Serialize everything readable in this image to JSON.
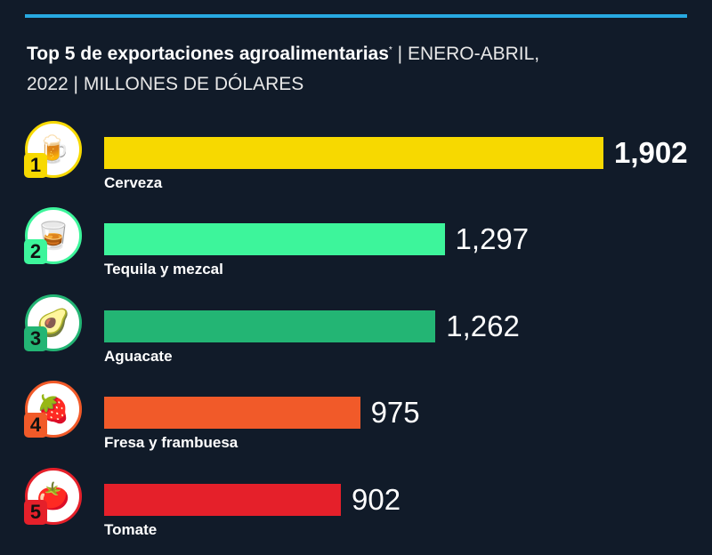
{
  "chart_data": {
    "type": "bar",
    "orientation": "horizontal",
    "title": "Top 5 de exportaciones agroalimentarias",
    "title_mark": "*",
    "subtitle_1": "| ENERO-ABRIL,",
    "subtitle_2": "2022 | MILLONES DE DÓLARES",
    "categories": [
      "Cerveza",
      "Tequila y mezcal",
      "Aguacate",
      "Fresa y frambuesa",
      "Tomate"
    ],
    "values": [
      1902,
      1297,
      1262,
      975,
      902
    ],
    "value_labels": [
      "1,902",
      "1,297",
      "1,262",
      "975",
      "902"
    ],
    "ranks": [
      "1",
      "2",
      "3",
      "4",
      "5"
    ],
    "icons": [
      "beer-mug-icon",
      "tequila-shot-icon",
      "avocado-icon",
      "strawberry-icon",
      "tomato-icon"
    ],
    "icon_glyphs": [
      "🍺",
      "🥃",
      "🥑",
      "🍓",
      "🍅"
    ],
    "colors": [
      "#f7d900",
      "#3df59b",
      "#23b574",
      "#f15a29",
      "#e5202a"
    ],
    "xlim": [
      0,
      1902
    ]
  }
}
